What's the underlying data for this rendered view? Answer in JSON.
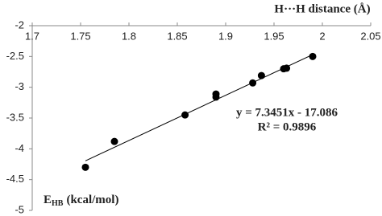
{
  "chart_data": {
    "type": "scatter",
    "xlabel": "H···H distance (Å)",
    "ylabel": {
      "main": "E",
      "sub": "HB",
      "unit": "(kcal/mol)"
    },
    "x": [
      1.755,
      1.785,
      1.858,
      1.89,
      1.89,
      1.928,
      1.937,
      1.96,
      1.963,
      1.99
    ],
    "series": [
      {
        "color": "#000000",
        "values": [
          -4.3,
          -3.88,
          -3.45,
          -3.11,
          -3.16,
          -2.93,
          -2.81,
          -2.7,
          -2.69,
          -2.5
        ]
      }
    ],
    "xlim": [
      1.7,
      2.05
    ],
    "xticks": [
      1.7,
      1.75,
      1.8,
      1.85,
      1.9,
      1.95,
      2,
      2.05
    ],
    "ylim": [
      -5,
      -2
    ],
    "yticks": [
      -2,
      -2.5,
      -3,
      -3.5,
      -4,
      -4.5,
      -5
    ],
    "trendline": {
      "slope": 7.3451,
      "intercept": -17.086
    },
    "annotations": [
      "y = 7.3451x - 17.086",
      "R² = 0.9896"
    ]
  }
}
